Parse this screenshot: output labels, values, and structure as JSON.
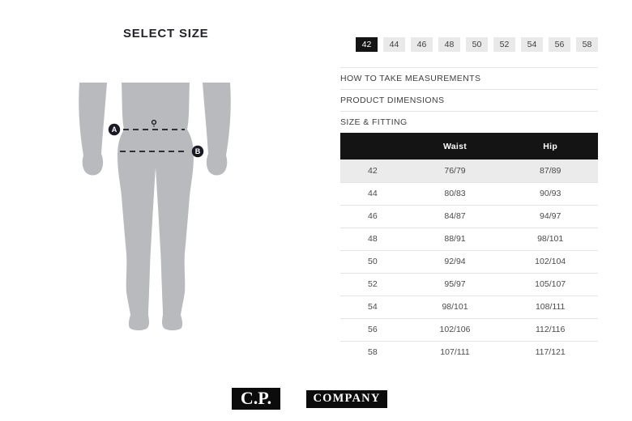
{
  "page": {
    "title": "SELECT SIZE"
  },
  "size_selector": {
    "sizes": [
      "42",
      "44",
      "46",
      "48",
      "50",
      "52",
      "54",
      "56",
      "58"
    ],
    "selected": "42"
  },
  "accordion": [
    "HOW TO TAKE MEASUREMENTS",
    "PRODUCT DIMENSIONS",
    "SIZE & FITTING"
  ],
  "size_table": {
    "columns": [
      "",
      "Waist",
      "Hip"
    ],
    "highlighted_size": "42",
    "rows": [
      {
        "size": "42",
        "waist": "76/79",
        "hip": "87/89"
      },
      {
        "size": "44",
        "waist": "80/83",
        "hip": "90/93"
      },
      {
        "size": "46",
        "waist": "84/87",
        "hip": "94/97"
      },
      {
        "size": "48",
        "waist": "88/91",
        "hip": "98/101"
      },
      {
        "size": "50",
        "waist": "92/94",
        "hip": "102/104"
      },
      {
        "size": "52",
        "waist": "95/97",
        "hip": "105/107"
      },
      {
        "size": "54",
        "waist": "98/101",
        "hip": "108/111"
      },
      {
        "size": "56",
        "waist": "102/106",
        "hip": "112/116"
      },
      {
        "size": "58",
        "waist": "107/111",
        "hip": "117/121"
      }
    ]
  },
  "diagram": {
    "markers": [
      "A",
      "B"
    ]
  },
  "logo": {
    "part1": "C.P.",
    "part2": "COMPANY"
  },
  "colors": {
    "accent": "#141414",
    "button_bg": "#e9e9e9",
    "highlight_row_bg": "#ebebeb",
    "divider": "#e4e4e4",
    "text": "#3f3f3f",
    "text_cell": "#4a4a4a",
    "text_dark": "#23232a",
    "silhouette": "#b8babe",
    "dash_line": "#1a1a24",
    "logo_bg": "#0c0c0c"
  }
}
